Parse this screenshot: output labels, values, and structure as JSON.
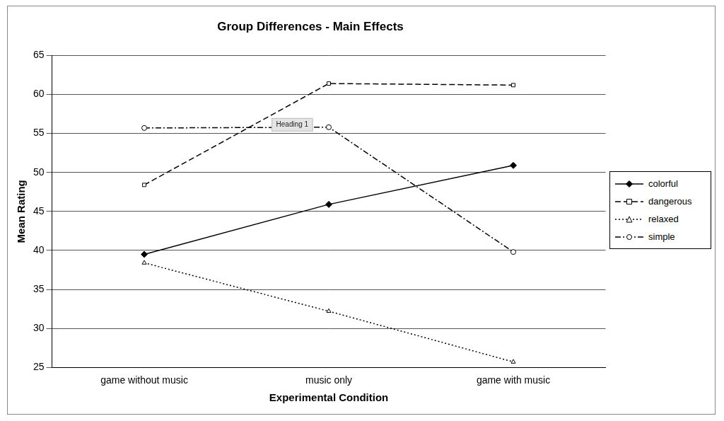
{
  "chart_data": {
    "type": "line",
    "title": "Group Differences - Main Effects",
    "x_label": "Experimental Condition",
    "y_label": "Mean Rating",
    "categories": [
      "game without music",
      "music only",
      "game with music"
    ],
    "series": [
      {
        "name": "colorful",
        "color": "#000000",
        "marker": "diamond",
        "line_style": "solid",
        "values": [
          39.5,
          45.9,
          50.9
        ]
      },
      {
        "name": "dangerous",
        "color": "#000000",
        "marker": "square",
        "line_style": "dashed",
        "values": [
          48.4,
          61.4,
          61.2
        ]
      },
      {
        "name": "relaxed",
        "color": "#000000",
        "marker": "triangle",
        "line_style": "dotted",
        "values": [
          38.4,
          32.2,
          25.7
        ]
      },
      {
        "name": "simple",
        "color": "#000000",
        "marker": "circle",
        "line_style": "dashdot",
        "values": [
          55.7,
          55.8,
          39.8
        ]
      }
    ],
    "ylim": [
      25,
      65
    ],
    "yticks": [
      25,
      30,
      35,
      40,
      45,
      50,
      55,
      60,
      65
    ],
    "grid": true,
    "legend": "right",
    "annotation": "Heading 1"
  }
}
